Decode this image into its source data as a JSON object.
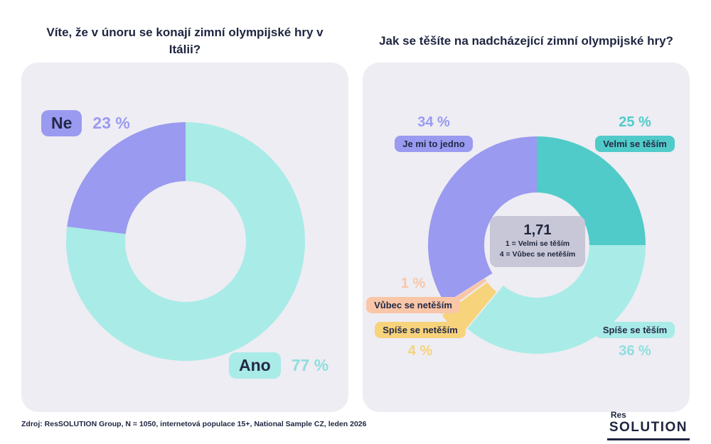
{
  "footer": {
    "source": "Zdroj: ResSOLUTION Group, N = 1050, internetová populace 15+, National Sample CZ, leden 2026"
  },
  "logo": {
    "line1": "Res",
    "line2": "SOLUTION"
  },
  "colors": {
    "purple": "#9a9af0",
    "teal_medium": "#50cbc9",
    "teal_light": "#a9ebe7",
    "yellow": "#f7d37b",
    "peach": "#f9c6a7",
    "panel_bg": "#ededf3",
    "center_badge_bg": "#c7c7d8",
    "text_dark": "#1e2440"
  },
  "chart_data": [
    {
      "type": "pie",
      "donut": true,
      "title": "Víte, že v únoru se konají zimní olympijské hry v Itálii?",
      "legend_position": "labels-on-chart",
      "segments": [
        {
          "label": "Ano",
          "value": 77,
          "value_label": "77 %",
          "color": "#a9ebe7"
        },
        {
          "label": "Ne",
          "value": 23,
          "value_label": "23 %",
          "color": "#9a9af0"
        }
      ]
    },
    {
      "type": "pie",
      "donut": true,
      "title": "Jak se těšíte na nadcházející zimní olympijské hry?",
      "legend_position": "labels-on-chart",
      "segments": [
        {
          "label": "Velmi se těším",
          "value": 25,
          "value_label": "25 %",
          "color": "#50cbc9"
        },
        {
          "label": "Spíše se těším",
          "value": 36,
          "value_label": "36 %",
          "color": "#a9ebe7"
        },
        {
          "label": "Spíše se netěším",
          "value": 4,
          "value_label": "4 %",
          "color": "#f7d37b",
          "exploded": true
        },
        {
          "label": "Vůbec se netěším",
          "value": 1,
          "value_label": "1 %",
          "color": "#f9c6a7",
          "exploded": true
        },
        {
          "label": "Je mi to jedno",
          "value": 34,
          "value_label": "34 %",
          "color": "#9a9af0"
        }
      ],
      "center_annotation": {
        "mean": "1,71",
        "scale_note_1": "1 = Velmi se těším",
        "scale_note_2": "4 = Vůbec se netěším"
      }
    }
  ]
}
